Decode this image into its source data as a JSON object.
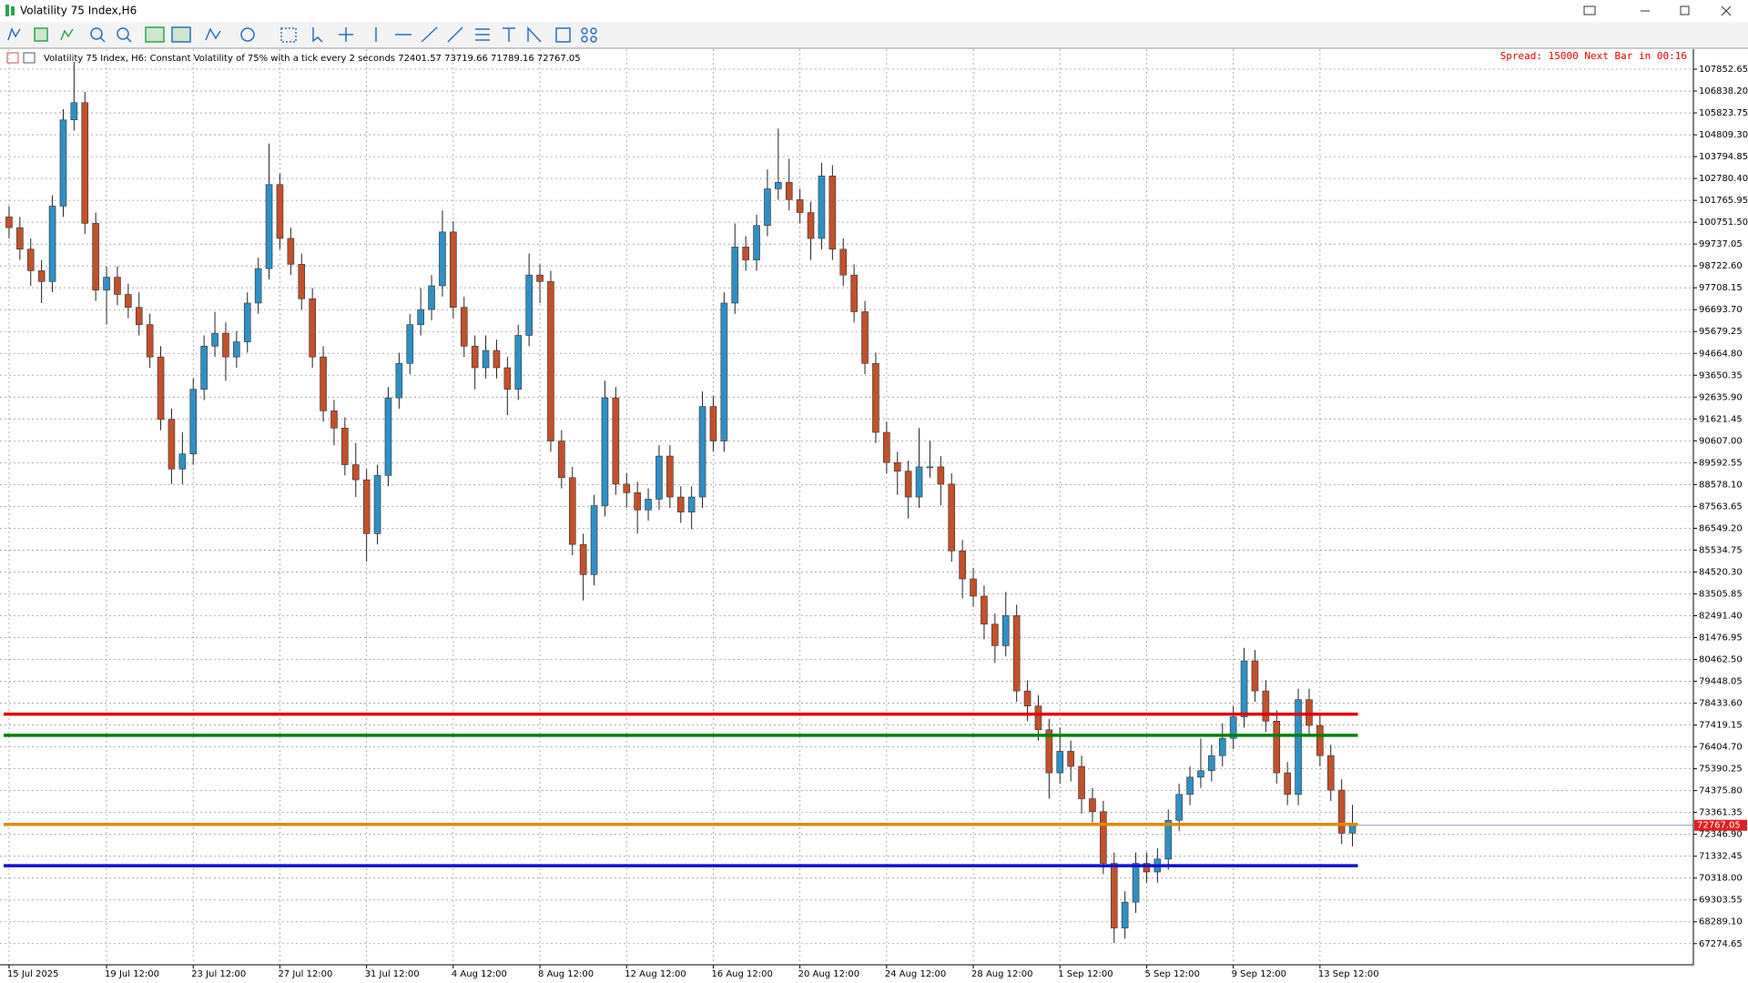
{
  "window": {
    "title": "Volatility 75 Index,H6"
  },
  "chart_data": {
    "type": "candlestick",
    "header": "Volatility 75 Index, H6:  Constant Volatility of 75% with a tick every 2 seconds",
    "status": "Spread: 15000 Next Bar in 00:16",
    "up_color": "#2f8fc4",
    "down_color": "#c2502b",
    "grid": true,
    "open": [
      101000,
      100500,
      99500,
      98500,
      98000,
      101500,
      105500,
      106300,
      100700,
      97600,
      98200,
      97400,
      96800,
      96000,
      94500,
      91600,
      89300,
      90000,
      93000,
      95000,
      95600,
      94500,
      95200,
      97000,
      98600,
      102500,
      100000,
      98800,
      97200,
      94500,
      92000,
      91200,
      89500,
      88800,
      86300,
      89000,
      92600,
      94200,
      96000,
      96700,
      97800,
      100300,
      96800,
      95000,
      94000,
      94800,
      94000,
      93000,
      95500,
      98300,
      98000,
      90600,
      88900,
      85800,
      84400,
      87600,
      92600,
      88600,
      88200,
      87400,
      87900,
      89900,
      88000,
      87300,
      88000,
      92200,
      90600,
      97000,
      99600,
      99000,
      100600,
      102300,
      102600,
      101800,
      101200,
      100000,
      102900,
      99500,
      98300,
      96600,
      94200,
      91000,
      89600,
      89200,
      88000,
      89400,
      89400,
      88600,
      85500,
      84200,
      83400,
      82100,
      81100,
      82500,
      79000,
      78300,
      77200,
      75200,
      76200,
      75500,
      74000,
      73400,
      71000,
      68000,
      69200,
      71000,
      70600,
      71200,
      73000,
      74200,
      75000,
      75300,
      76000,
      76800,
      77800,
      80400,
      79000,
      77600,
      75200,
      74200,
      78600,
      77400,
      76000,
      74400,
      72401.57
    ],
    "high": [
      101500,
      101000,
      100000,
      99000,
      102000,
      106000,
      108200,
      106800,
      101200,
      98700,
      98700,
      97900,
      97500,
      96500,
      95000,
      92100,
      91000,
      93500,
      95500,
      96600,
      96100,
      95700,
      97500,
      99100,
      104400,
      103000,
      100500,
      99300,
      97700,
      95000,
      92500,
      91700,
      90500,
      89300,
      89500,
      93100,
      94700,
      96500,
      97700,
      98300,
      101300,
      100800,
      97300,
      95500,
      95500,
      95300,
      94500,
      96000,
      99300,
      98800,
      98500,
      91100,
      89400,
      86300,
      88100,
      93400,
      93100,
      89100,
      88700,
      88400,
      90400,
      90400,
      88500,
      88500,
      92900,
      92700,
      97500,
      100700,
      100100,
      101100,
      103200,
      105100,
      103700,
      102300,
      101700,
      103500,
      103400,
      100000,
      98800,
      97100,
      94700,
      91500,
      90100,
      89700,
      91200,
      90600,
      89900,
      89100,
      86000,
      84700,
      83900,
      82600,
      83600,
      83000,
      79500,
      78800,
      77700,
      77300,
      76700,
      76000,
      74500,
      73900,
      71500,
      69700,
      71500,
      71500,
      71700,
      73500,
      74700,
      75500,
      76800,
      76500,
      77500,
      78300,
      81000,
      80900,
      79500,
      78100,
      75700,
      79100,
      79100,
      77900,
      76500,
      74900,
      73719.66
    ],
    "low": [
      100000,
      99000,
      97800,
      97000,
      97500,
      101000,
      105000,
      100200,
      97100,
      96000,
      96900,
      96300,
      95500,
      94000,
      91100,
      88600,
      88600,
      89500,
      92500,
      94500,
      93400,
      94000,
      94700,
      96500,
      98100,
      99500,
      98300,
      96700,
      94000,
      91500,
      90400,
      89000,
      88000,
      85000,
      85800,
      88500,
      92100,
      93700,
      95500,
      96200,
      97300,
      96300,
      94500,
      93000,
      93500,
      93500,
      91800,
      92500,
      95000,
      97000,
      90100,
      88400,
      85300,
      83200,
      83900,
      87100,
      88100,
      87500,
      86300,
      86900,
      87400,
      87500,
      86800,
      86500,
      87500,
      90100,
      90100,
      96500,
      98500,
      98500,
      100100,
      101800,
      101300,
      100700,
      99000,
      99500,
      99000,
      97800,
      96100,
      93700,
      90500,
      89100,
      88100,
      87000,
      87500,
      88900,
      87600,
      85000,
      83300,
      82900,
      81400,
      80300,
      80600,
      78500,
      77600,
      76700,
      74000,
      74700,
      74800,
      73300,
      72900,
      70500,
      67300,
      67500,
      68700,
      70100,
      70100,
      70700,
      72500,
      73700,
      74500,
      74800,
      75500,
      76300,
      77300,
      78500,
      77100,
      74700,
      73700,
      73700,
      76900,
      75500,
      73900,
      71900,
      71789.16
    ],
    "close": [
      100500,
      99500,
      98500,
      98000,
      101500,
      105500,
      106300,
      100700,
      97600,
      98200,
      97400,
      96800,
      96000,
      94500,
      91600,
      89300,
      90000,
      93000,
      95000,
      95600,
      94500,
      95200,
      97000,
      98600,
      102500,
      100000,
      98800,
      97200,
      94500,
      92000,
      91200,
      89500,
      88800,
      86300,
      89000,
      92600,
      94200,
      96000,
      96700,
      97800,
      100300,
      96800,
      95000,
      94000,
      94800,
      94000,
      93000,
      95500,
      98300,
      98000,
      90600,
      88900,
      85800,
      84400,
      87600,
      92600,
      88600,
      88200,
      87400,
      87900,
      89900,
      88000,
      87300,
      88000,
      92200,
      90600,
      97000,
      99600,
      99000,
      100600,
      102300,
      102600,
      101800,
      101200,
      100000,
      102900,
      99500,
      98300,
      96600,
      94200,
      91000,
      89600,
      89200,
      88000,
      89400,
      89400,
      88600,
      85500,
      84200,
      83400,
      82100,
      81100,
      82500,
      79000,
      78300,
      77200,
      75200,
      76200,
      75500,
      74000,
      73400,
      71000,
      68000,
      69200,
      71000,
      70600,
      71200,
      73000,
      74200,
      75000,
      75300,
      76000,
      76800,
      77800,
      80400,
      79000,
      77600,
      75200,
      74200,
      78600,
      77400,
      76000,
      74400,
      72400,
      72767.05
    ],
    "levels": [
      {
        "value": 77924,
        "color": "#e00000"
      },
      {
        "value": 76942,
        "color": "#00800a"
      },
      {
        "value": 72806,
        "color": "#e08a00"
      },
      {
        "value": 70894,
        "color": "#1010d0"
      }
    ],
    "ylim": [
      66293,
      108783
    ],
    "yticks": [
      107852.65,
      {
        "value": 106838.2,
        "label": "106838.20"
      },
      105823.75,
      {
        "value": 104809.3,
        "label": "104809.30"
      },
      103794.85,
      {
        "value": 102780.4,
        "label": "102780.40"
      },
      101765.95,
      {
        "value": 100751.5,
        "label": "100751.50"
      },
      99737.05,
      {
        "value": 98722.6,
        "label": "98722.60"
      },
      97708.15,
      {
        "value": 96693.7,
        "label": "96693.70"
      },
      95679.25,
      {
        "value": 94664.8,
        "label": "94664.80"
      },
      93650.35,
      {
        "value": 92635.9,
        "label": "92635.90"
      },
      91621.45,
      {
        "value": 90607,
        "label": "90607.00"
      },
      89592.55,
      {
        "value": 88578.1,
        "label": "88578.10"
      },
      87563.65,
      {
        "value": 86549.2,
        "label": "86549.20"
      },
      85534.75,
      {
        "value": 84520.3,
        "label": "84520.30"
      },
      83505.85,
      {
        "value": 82491.4,
        "label": "82491.40"
      },
      81476.95,
      {
        "value": 80462.5,
        "label": "80462.50"
      },
      79448.05,
      {
        "value": 78433.6,
        "label": "78433.60"
      },
      77419.15,
      {
        "value": 76404.7,
        "label": "76404.70"
      },
      75390.25,
      {
        "value": 74375.8,
        "label": "74375.80"
      },
      73361.35,
      {
        "value": 72346.9,
        "label": "72346.90"
      },
      71332.45,
      {
        "value": 70318,
        "label": "70318.00"
      },
      69303.55,
      {
        "value": 68289.1,
        "label": "68289.10"
      },
      67274.65
    ],
    "xticks": [
      {
        "value": 0,
        "label": "15 Jul 2025"
      },
      {
        "value": 9,
        "label": "19 Jul 12:00"
      },
      {
        "value": 17,
        "label": "23 Jul 12:00"
      },
      {
        "value": 25,
        "label": "27 Jul 12:00"
      },
      {
        "value": 33,
        "label": "31 Jul 12:00"
      },
      {
        "value": 41,
        "label": "4 Aug 12:00"
      },
      {
        "value": 49,
        "label": "8 Aug 12:00"
      },
      {
        "value": 57,
        "label": "12 Aug 12:00"
      },
      {
        "value": 65,
        "label": "16 Aug 12:00"
      },
      {
        "value": 73,
        "label": "20 Aug 12:00"
      },
      {
        "value": 81,
        "label": "24 Aug 12:00"
      },
      {
        "value": 89,
        "label": "28 Aug 12:00"
      },
      {
        "value": 97,
        "label": "1 Sep 12:00"
      },
      {
        "value": 105,
        "label": "5 Sep 12:00"
      },
      {
        "value": 113,
        "label": "9 Sep 12:00"
      },
      {
        "value": 121,
        "label": "13 Sep 12:00"
      }
    ]
  }
}
